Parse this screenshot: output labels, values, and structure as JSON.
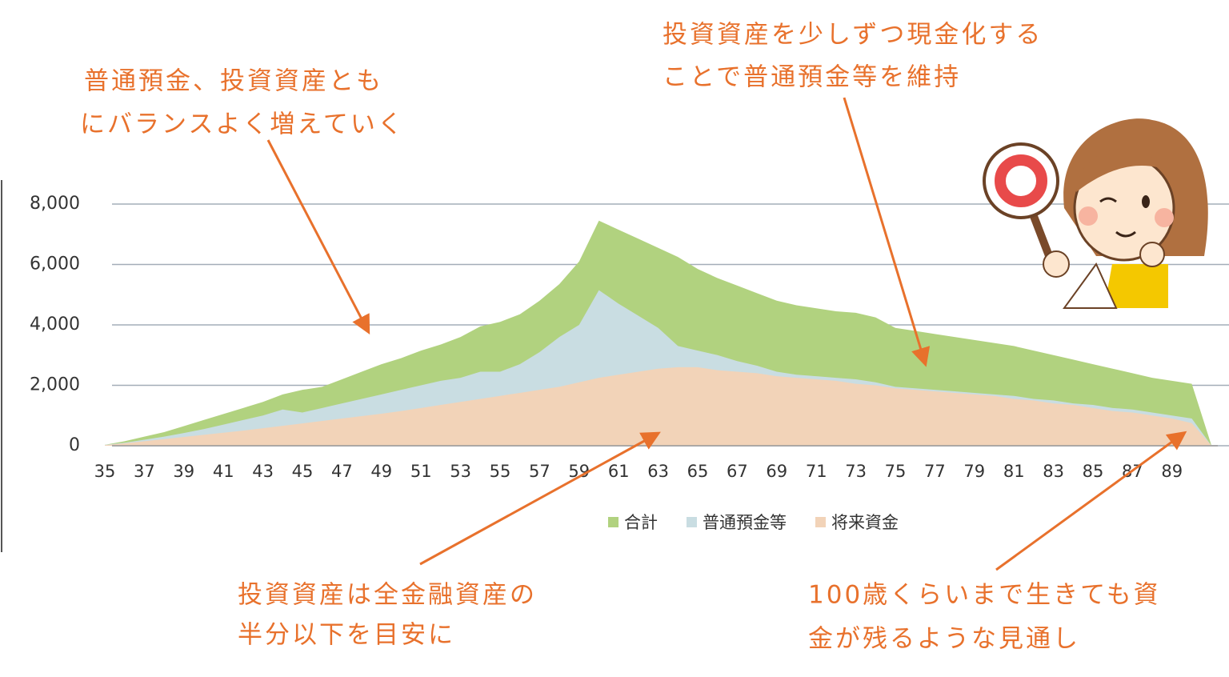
{
  "chart_data": {
    "type": "area",
    "categories": [
      35,
      null,
      37,
      null,
      39,
      null,
      41,
      null,
      43,
      null,
      45,
      null,
      47,
      null,
      49,
      null,
      51,
      null,
      53,
      null,
      55,
      null,
      57,
      null,
      59,
      null,
      61,
      null,
      63,
      null,
      65,
      null,
      67,
      null,
      69,
      null,
      71,
      null,
      73,
      null,
      75,
      null,
      77,
      null,
      79,
      null,
      81,
      null,
      83,
      null,
      85,
      null,
      87,
      null,
      89,
      null,
      null
    ],
    "series": [
      {
        "name": "合計",
        "color": "#b1d27f",
        "values": [
          30,
          150,
          300,
          450,
          650,
          850,
          1050,
          1250,
          1450,
          1700,
          1850,
          1950,
          2200,
          2450,
          2700,
          2900,
          3150,
          3350,
          3600,
          3950,
          4100,
          4350,
          4800,
          5350,
          6100,
          7450,
          7150,
          6850,
          6550,
          6250,
          5850,
          5550,
          5300,
          5050,
          4800,
          4650,
          4550,
          4450,
          4400,
          4250,
          3900,
          3800,
          3700,
          3600,
          3500,
          3400,
          3300,
          3150,
          3000,
          2850,
          2700,
          2550,
          2400,
          2250,
          2150,
          2050,
          0
        ]
      },
      {
        "name": "普通預金等",
        "color": "#c9dde2",
        "values": [
          30,
          100,
          200,
          300,
          420,
          550,
          700,
          850,
          1000,
          1200,
          1100,
          1250,
          1400,
          1550,
          1700,
          1850,
          2000,
          2150,
          2250,
          2450,
          2450,
          2700,
          3100,
          3600,
          4000,
          5150,
          4700,
          4300,
          3900,
          3300,
          3150,
          3000,
          2800,
          2650,
          2450,
          2350,
          2300,
          2250,
          2200,
          2100,
          1950,
          1900,
          1850,
          1800,
          1750,
          1700,
          1650,
          1550,
          1500,
          1400,
          1350,
          1250,
          1200,
          1100,
          1000,
          900,
          0
        ]
      },
      {
        "name": "将来資金",
        "color": "#f2d3b8",
        "values": [
          20,
          80,
          150,
          220,
          290,
          360,
          430,
          500,
          580,
          660,
          740,
          820,
          900,
          980,
          1060,
          1150,
          1250,
          1350,
          1450,
          1550,
          1650,
          1750,
          1850,
          1950,
          2100,
          2250,
          2350,
          2450,
          2550,
          2600,
          2600,
          2500,
          2450,
          2400,
          2300,
          2250,
          2200,
          2150,
          2050,
          2000,
          1900,
          1850,
          1800,
          1750,
          1700,
          1650,
          1550,
          1500,
          1400,
          1350,
          1250,
          1150,
          1100,
          1000,
          900,
          750,
          0
        ]
      }
    ],
    "ylim": [
      0,
      8000
    ],
    "yticks": [
      0,
      {
        "value": 2000,
        "label": "2,000"
      },
      {
        "value": 4000,
        "label": "4,000"
      },
      {
        "value": 6000,
        "label": "6,000"
      },
      {
        "value": 8000,
        "label": "8,000"
      }
    ],
    "grid": true,
    "legend": "bottom",
    "annotations": [
      {
        "lines": [
          "普通預金、投資資産とも",
          "にバランスよく増えていく"
        ]
      },
      {
        "lines": [
          "投資資産を少しずつ現金化する",
          "ことで普通預金等を維持"
        ]
      },
      {
        "lines": [
          "投資資産は全金融資産の",
          "半分以下を目安に"
        ]
      },
      {
        "lines": [
          "100歳くらいまで生きても資",
          "金が残るような見通し"
        ]
      }
    ]
  }
}
